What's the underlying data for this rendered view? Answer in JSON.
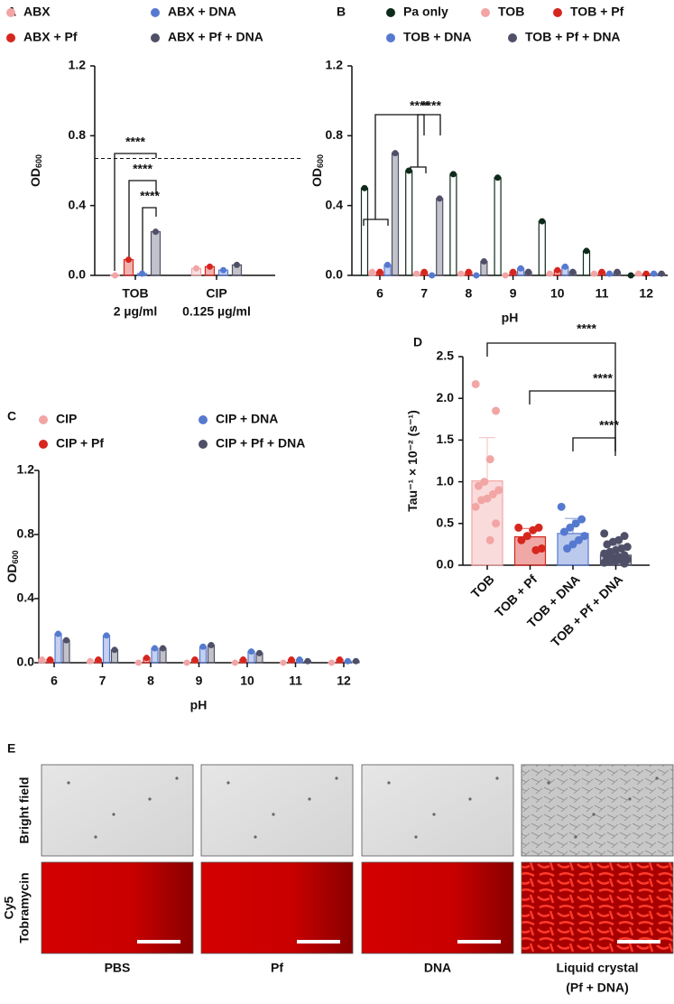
{
  "chart_data": [
    {
      "type": "grouped_bar",
      "panel": "A",
      "y_label": "OD",
      "y_label_sub": "600",
      "categories": [
        "TOB",
        "CIP"
      ],
      "category_sublabels": [
        "2 µg/ml",
        "0.125 µg/ml"
      ],
      "series": [
        {
          "name": "ABX",
          "color": "#f2a5a5",
          "values": [
            0.0,
            0.04
          ]
        },
        {
          "name": "ABX + Pf",
          "color": "#d7261e",
          "values": [
            0.09,
            0.05
          ]
        },
        {
          "name": "ABX + DNA",
          "color": "#5679d0",
          "values": [
            0.01,
            0.03
          ]
        },
        {
          "name": "ABX + Pf + DNA",
          "color": "#4f4f68",
          "values": [
            0.25,
            0.06
          ]
        }
      ],
      "reference_line": 0.67,
      "annotations": [
        "****",
        "****",
        "****"
      ],
      "ylim": [
        0,
        1.2
      ],
      "yticks": [
        {
          "value": 0,
          "label": "0.0"
        },
        0.4,
        0.8,
        1.2
      ]
    },
    {
      "type": "grouped_bar",
      "panel": "B",
      "y_label": "OD",
      "y_label_sub": "600",
      "x_label": "pH",
      "categories": [
        "6",
        "7",
        "8",
        "9",
        "10",
        "11",
        "12"
      ],
      "series": [
        {
          "name": "Pa only",
          "color": "#0e2a1b",
          "values": [
            0.5,
            0.6,
            0.58,
            0.56,
            0.31,
            0.14,
            0.0
          ]
        },
        {
          "name": "TOB",
          "color": "#f2a5a5",
          "values": [
            0.02,
            0.01,
            0.01,
            0.0,
            0.01,
            0.01,
            0.01
          ]
        },
        {
          "name": "TOB + Pf",
          "color": "#d7261e",
          "values": [
            0.02,
            0.02,
            0.02,
            0.02,
            0.03,
            0.02,
            0.01
          ]
        },
        {
          "name": "TOB + DNA",
          "color": "#5679d0",
          "values": [
            0.06,
            0.0,
            0.0,
            0.04,
            0.05,
            0.01,
            0.01
          ]
        },
        {
          "name": "TOB + Pf + DNA",
          "color": "#4f4f68",
          "values": [
            0.7,
            0.44,
            0.08,
            0.02,
            0.02,
            0.02,
            0.01
          ]
        }
      ],
      "annotations": [
        "****",
        "****"
      ],
      "ylim": [
        0,
        1.2
      ],
      "yticks": [
        {
          "value": 0,
          "label": "0.0"
        },
        0.4,
        0.8,
        1.2
      ]
    },
    {
      "type": "grouped_bar",
      "panel": "C",
      "y_label": "OD",
      "y_label_sub": "600",
      "x_label": "pH",
      "categories": [
        "6",
        "7",
        "8",
        "9",
        "10",
        "11",
        "12"
      ],
      "series": [
        {
          "name": "CIP",
          "color": "#f2a5a5",
          "values": [
            0.02,
            0.01,
            0.0,
            0.0,
            0.0,
            0.0,
            0.0
          ]
        },
        {
          "name": "CIP + Pf",
          "color": "#d7261e",
          "values": [
            0.02,
            0.02,
            0.03,
            0.02,
            0.02,
            0.02,
            0.02
          ]
        },
        {
          "name": "CIP + DNA",
          "color": "#5679d0",
          "values": [
            0.18,
            0.17,
            0.09,
            0.1,
            0.07,
            0.02,
            0.01
          ]
        },
        {
          "name": "CIP + Pf + DNA",
          "color": "#4f4f68",
          "values": [
            0.14,
            0.08,
            0.09,
            0.11,
            0.06,
            0.01,
            0.01
          ]
        }
      ],
      "ylim": [
        0,
        1.2
      ],
      "yticks": [
        {
          "value": 0,
          "label": "0.0"
        },
        0.4,
        0.8,
        1.2
      ]
    },
    {
      "type": "bar",
      "panel": "D",
      "y_label": "Tau⁻¹ × 10⁻² (s⁻¹)",
      "categories": [
        "TOB",
        "TOB + Pf",
        "TOB + DNA",
        "TOB + Pf + DNA"
      ],
      "colors": [
        "#f2a5a5",
        "#d7261e",
        "#5679d0",
        "#4f4f68"
      ],
      "values": [
        1.01,
        0.34,
        0.38,
        0.12
      ],
      "errors": [
        0.52,
        0.1,
        0.18,
        0.12
      ],
      "points": [
        [
          2.17,
          1.85,
          1.27,
          1.0,
          0.95,
          0.9,
          0.85,
          0.8,
          0.78,
          0.7,
          0.5,
          0.3
        ],
        [
          0.45,
          0.45,
          0.42,
          0.35,
          0.3,
          0.2,
          0.18
        ],
        [
          0.7,
          0.55,
          0.5,
          0.45,
          0.4,
          0.35,
          0.3,
          0.25,
          0.2
        ],
        [
          0.38,
          0.35,
          0.3,
          0.28,
          0.25,
          0.22,
          0.2,
          0.18,
          0.16,
          0.14,
          0.12,
          0.1,
          0.09,
          0.08,
          0.07,
          0.06,
          0.05,
          0.04,
          0.03,
          0.02
        ]
      ],
      "annotations": [
        "****",
        "****",
        "****"
      ],
      "ylim": [
        0,
        2.5
      ],
      "yticks": [
        {
          "value": 0,
          "label": "0.0"
        },
        0.5,
        {
          "value": 1,
          "label": "1.0"
        },
        1.5,
        {
          "value": 2,
          "label": "2.0"
        },
        2.5
      ]
    }
  ],
  "panel_e": {
    "panel": "E",
    "row_labels": [
      [
        "Bright field"
      ],
      [
        "Cy5",
        "Tobramycin"
      ]
    ],
    "column_labels": [
      [
        "PBS"
      ],
      [
        "Pf"
      ],
      [
        "DNA"
      ],
      [
        "Liquid crystal",
        "(Pf + DNA)"
      ]
    ]
  }
}
